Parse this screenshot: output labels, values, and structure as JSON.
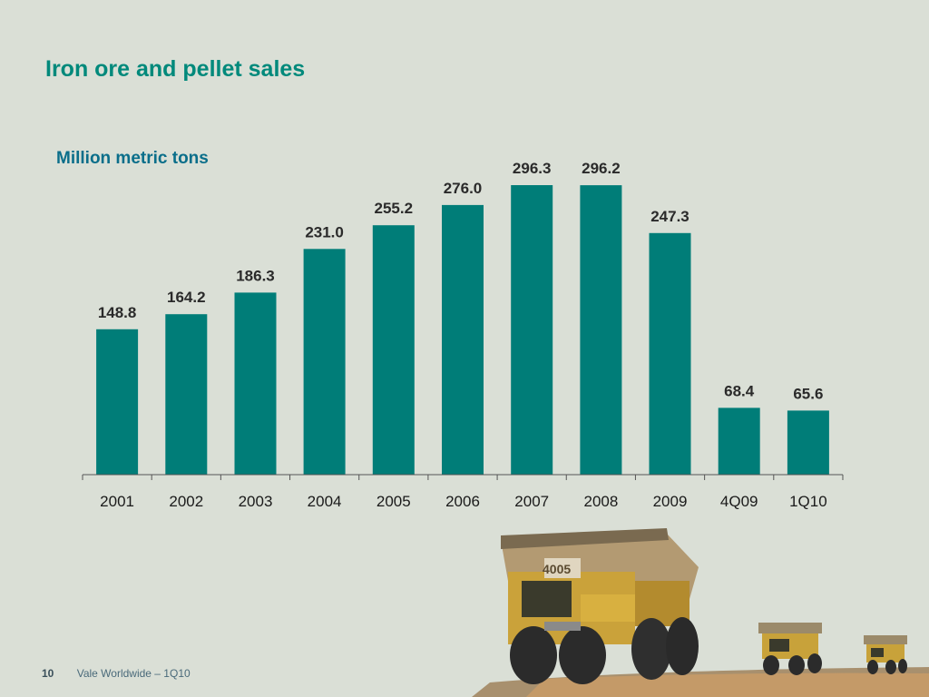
{
  "title": "Iron ore and pellet sales",
  "footer": {
    "page_number": "10",
    "text": "Vale Worldwide – 1Q10"
  },
  "colors": {
    "bar": "#007d78",
    "title": "#00897b",
    "subtitle": "#0a6e8a",
    "background": "#dadfd6"
  },
  "chart_data": {
    "type": "bar",
    "title": "",
    "unit_label": "Million metric tons",
    "categories": [
      "2001",
      "2002",
      "2003",
      "2004",
      "2005",
      "2006",
      "2007",
      "2008",
      "2009",
      "4Q09",
      "1Q10"
    ],
    "values": [
      148.8,
      164.2,
      186.3,
      231.0,
      255.2,
      276.0,
      296.3,
      296.2,
      247.3,
      68.4,
      65.6
    ],
    "value_labels": [
      "148.8",
      "164.2",
      "186.3",
      "231.0",
      "255.2",
      "276.0",
      "296.3",
      "296.2",
      "247.3",
      "68.4",
      "65.6"
    ],
    "ylim": [
      0,
      296.3
    ],
    "grid": false,
    "legend": "none"
  }
}
